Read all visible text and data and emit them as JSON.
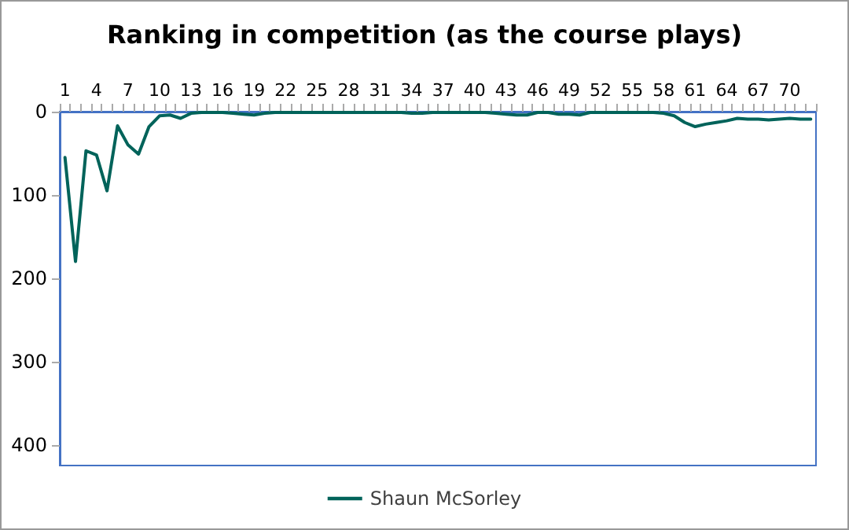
{
  "chart_data": {
    "type": "line",
    "title": "Ranking in competition (as the course plays)",
    "categories": [
      "1",
      null,
      null,
      "4",
      null,
      null,
      "7",
      null,
      null,
      "10",
      null,
      null,
      "13",
      null,
      null,
      "16",
      null,
      null,
      "19",
      null,
      null,
      "22",
      null,
      null,
      "25",
      null,
      null,
      "28",
      null,
      null,
      "31",
      null,
      null,
      "34",
      null,
      null,
      "37",
      null,
      null,
      "40",
      null,
      null,
      "43",
      null,
      null,
      "46",
      null,
      null,
      "49",
      null,
      null,
      "52",
      null,
      null,
      "55",
      null,
      null,
      "58",
      null,
      null,
      "61",
      null,
      null,
      "64",
      null,
      null,
      "67",
      null,
      null,
      "70",
      null,
      null
    ],
    "series": [
      {
        "name": "Shaun McSorley",
        "color": "#00635a",
        "values": [
          55,
          180,
          47,
          52,
          95,
          17,
          40,
          51,
          18,
          5,
          4,
          8,
          2,
          1,
          1,
          1,
          2,
          3,
          4,
          2,
          1,
          1,
          1,
          1,
          1,
          1,
          1,
          1,
          1,
          1,
          1,
          1,
          1,
          2,
          2,
          1,
          1,
          1,
          1,
          1,
          1,
          2,
          3,
          4,
          4,
          1,
          1,
          3,
          3,
          4,
          1,
          1,
          1,
          1,
          1,
          1,
          1,
          2,
          5,
          13,
          18,
          15,
          13,
          11,
          8,
          9,
          9,
          10,
          9,
          8,
          9,
          9
        ]
      }
    ],
    "ylim": [
      425,
      0
    ],
    "yticks": [
      0,
      100,
      200,
      300,
      400
    ],
    "grid": false,
    "legend": "bottom",
    "marker": "none",
    "line_style": "solid"
  }
}
